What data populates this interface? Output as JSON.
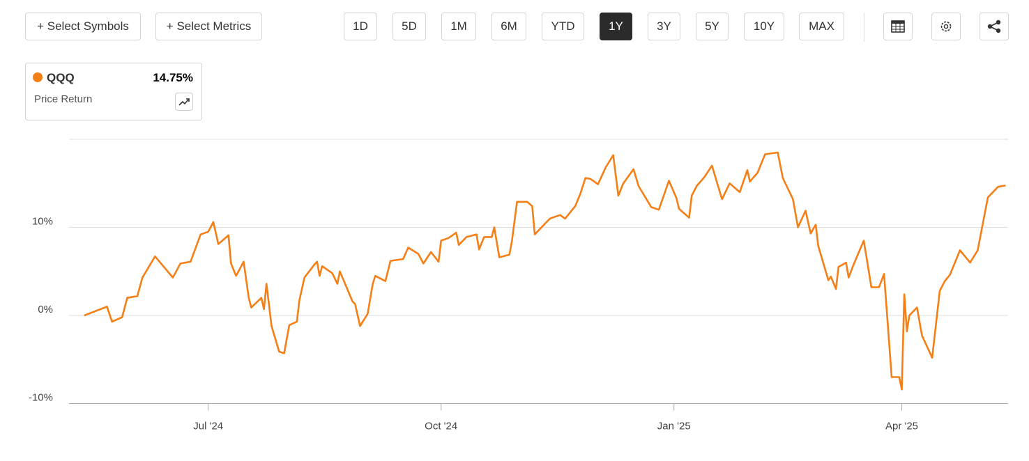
{
  "toolbar": {
    "buttons": [
      "+ Select Symbols",
      "+ Select Metrics"
    ],
    "ranges": [
      "1D",
      "5D",
      "1M",
      "6M",
      "YTD",
      "1Y",
      "3Y",
      "5Y",
      "10Y",
      "MAX"
    ],
    "active": "1Y"
  },
  "legend": {
    "value_label": "14.75%",
    "metric": "Price Return"
  },
  "chart_data": {
    "type": "line",
    "x": [
      "2024-05-13",
      "2024-05-22",
      "2024-05-24",
      "2024-05-28",
      "2024-05-30",
      "2024-06-03",
      "2024-06-05",
      "2024-06-10",
      "2024-06-17",
      "2024-06-20",
      "2024-06-24",
      "2024-06-28",
      "2024-07-01",
      "2024-07-03",
      "2024-07-05",
      "2024-07-09",
      "2024-07-10",
      "2024-07-12",
      "2024-07-15",
      "2024-07-17",
      "2024-07-18",
      "2024-07-22",
      "2024-07-23",
      "2024-07-24",
      "2024-07-26",
      "2024-07-29",
      "2024-07-31",
      "2024-08-02",
      "2024-08-05",
      "2024-08-06",
      "2024-08-08",
      "2024-08-12",
      "2024-08-13",
      "2024-08-14",
      "2024-08-15",
      "2024-08-19",
      "2024-08-21",
      "2024-08-22",
      "2024-08-27",
      "2024-08-28",
      "2024-08-30",
      "2024-09-02",
      "2024-09-04",
      "2024-09-05",
      "2024-09-09",
      "2024-09-11",
      "2024-09-16",
      "2024-09-18",
      "2024-09-22",
      "2024-09-24",
      "2024-09-27",
      "2024-09-30",
      "2024-10-01",
      "2024-10-04",
      "2024-10-07",
      "2024-10-08",
      "2024-10-11",
      "2024-10-15",
      "2024-10-16",
      "2024-10-18",
      "2024-10-21",
      "2024-10-22",
      "2024-10-24",
      "2024-10-28",
      "2024-10-29",
      "2024-10-31",
      "2024-11-04",
      "2024-11-06",
      "2024-11-07",
      "2024-11-10",
      "2024-11-13",
      "2024-11-17",
      "2024-11-19",
      "2024-11-23",
      "2024-11-25",
      "2024-11-27",
      "2024-11-29",
      "2024-12-02",
      "2024-12-05",
      "2024-12-08",
      "2024-12-10",
      "2024-12-12",
      "2024-12-16",
      "2024-12-18",
      "2024-12-23",
      "2024-12-26",
      "2024-12-30",
      "2025-01-02",
      "2025-01-03",
      "2025-01-07",
      "2025-01-08",
      "2025-01-10",
      "2025-01-13",
      "2025-01-16",
      "2025-01-20",
      "2025-01-23",
      "2025-01-27",
      "2025-01-30",
      "2025-01-31",
      "2025-02-03",
      "2025-02-06",
      "2025-02-11",
      "2025-02-13",
      "2025-02-17",
      "2025-02-19",
      "2025-02-22",
      "2025-02-24",
      "2025-02-26",
      "2025-02-27",
      "2025-03-03",
      "2025-03-04",
      "2025-03-06",
      "2025-03-07",
      "2025-03-10",
      "2025-03-11",
      "2025-03-13",
      "2025-03-17",
      "2025-03-20",
      "2025-03-23",
      "2025-03-25",
      "2025-03-28",
      "2025-03-31",
      "2025-04-01",
      "2025-04-02",
      "2025-04-03",
      "2025-04-04",
      "2025-04-07",
      "2025-04-09",
      "2025-04-13",
      "2025-04-16",
      "2025-04-18",
      "2025-04-20",
      "2025-04-24",
      "2025-04-28",
      "2025-05-01",
      "2025-05-05",
      "2025-05-09",
      "2025-05-12"
    ],
    "series": [
      {
        "name": "QQQ",
        "color": "#f57f17",
        "values": [
          0,
          1.0,
          -0.7,
          -0.2,
          2.0,
          2.2,
          4.3,
          6.7,
          4.3,
          5.9,
          6.1,
          9.2,
          9.5,
          10.6,
          8.1,
          9.1,
          5.9,
          4.5,
          6.1,
          2.0,
          0.9,
          2.0,
          0.7,
          3.6,
          -1.2,
          -4.1,
          -4.3,
          -1.1,
          -0.7,
          1.7,
          4.3,
          5.8,
          6.1,
          4.5,
          5.6,
          4.8,
          3.6,
          5.0,
          1.6,
          1.3,
          -1.2,
          0.2,
          3.6,
          4.5,
          3.9,
          6.2,
          6.4,
          7.7,
          7.0,
          5.9,
          7.2,
          6.1,
          8.5,
          8.8,
          9.4,
          8.0,
          8.9,
          9.2,
          7.5,
          8.9,
          8.9,
          10.0,
          6.6,
          6.9,
          8.5,
          12.9,
          12.9,
          12.4,
          9.2,
          10.1,
          11.0,
          11.4,
          11.0,
          12.4,
          13.8,
          15.6,
          15.5,
          14.9,
          16.8,
          18.2,
          13.6,
          15.0,
          16.6,
          14.7,
          12.3,
          12.0,
          15.3,
          13.3,
          12.1,
          11.1,
          13.6,
          14.7,
          15.7,
          17.0,
          13.2,
          15.0,
          14.0,
          16.5,
          15.2,
          16.2,
          18.3,
          18.5,
          15.6,
          13.2,
          10.0,
          11.9,
          9.3,
          10.3,
          7.9,
          4.0,
          4.4,
          3.0,
          5.5,
          6.0,
          4.3,
          5.8,
          8.5,
          3.2,
          3.2,
          4.7,
          -7.0,
          -7.0,
          -8.4,
          2.4,
          -1.8,
          0,
          0.9,
          -2.3,
          -4.8,
          2.8,
          3.9,
          4.6,
          7.4,
          6.0,
          7.4,
          13.4,
          14.6,
          14.75
        ]
      }
    ],
    "xlim": [
      "2024-05-07",
      "2025-05-13"
    ],
    "xticks": [
      {
        "value": "2024-07-01",
        "label": "Jul '24"
      },
      {
        "value": "2024-10-01",
        "label": "Oct '24"
      },
      {
        "value": "2025-01-01",
        "label": "Jan '25"
      },
      {
        "value": "2025-04-01",
        "label": "Apr '25"
      }
    ],
    "ylim": [
      -10,
      20
    ],
    "yticks": [
      {
        "value": -10,
        "label": "-10%"
      },
      {
        "value": 0,
        "label": "0%"
      },
      {
        "value": 10,
        "label": "10%"
      }
    ],
    "grid": true
  }
}
